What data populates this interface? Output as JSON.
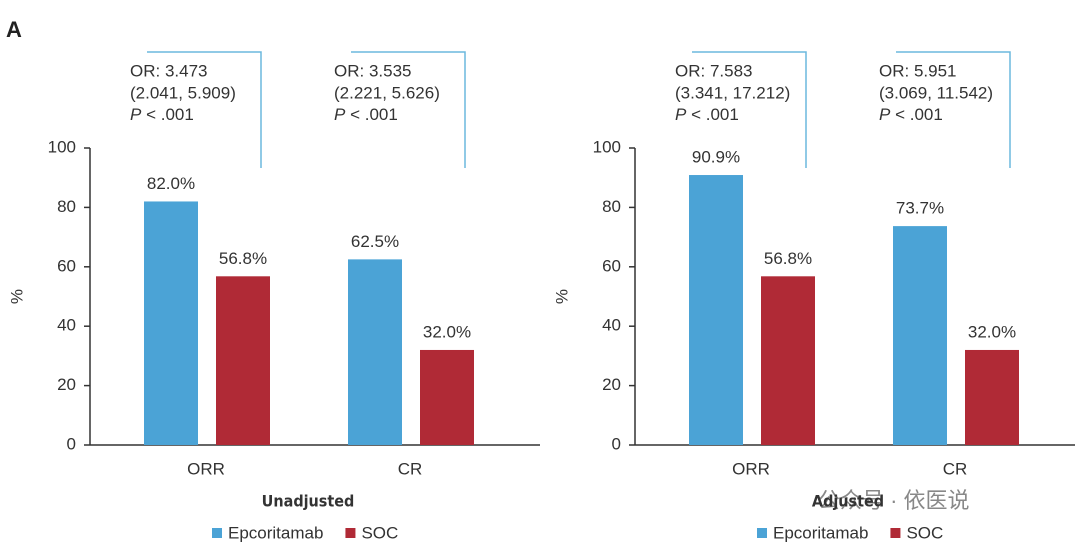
{
  "panel_label": "A",
  "watermark": "公众号 · 依医说",
  "chart_data": [
    {
      "type": "bar",
      "xlabel": "Unadjusted",
      "ylabel": "%",
      "categories": [
        "ORR",
        "CR"
      ],
      "series": [
        {
          "name": "Epcoritamab",
          "color": "#4ba3d6",
          "values": [
            82.0,
            62.5
          ],
          "value_labels": [
            "82.0%",
            "62.5%"
          ]
        },
        {
          "name": "SOC",
          "color": "#b02a36",
          "values": [
            56.8,
            32.0
          ],
          "value_labels": [
            "56.8%",
            "32.0%"
          ]
        }
      ],
      "ylim": [
        0,
        100
      ],
      "yticks": [
        0,
        20,
        40,
        60,
        80,
        100
      ],
      "annotations": [
        {
          "or": "OR: 3.473",
          "ci": "(2.041, 5.909)",
          "p_symbol": "P",
          "p_text": "< .001"
        },
        {
          "or": "OR: 3.535",
          "ci": "(2.221, 5.626)",
          "p_symbol": "P",
          "p_text": "< .001"
        }
      ]
    },
    {
      "type": "bar",
      "xlabel": "Adjusted",
      "ylabel": "%",
      "categories": [
        "ORR",
        "CR"
      ],
      "series": [
        {
          "name": "Epcoritamab",
          "color": "#4ba3d6",
          "values": [
            90.9,
            73.7
          ],
          "value_labels": [
            "90.9%",
            "73.7%"
          ]
        },
        {
          "name": "SOC",
          "color": "#b02a36",
          "values": [
            56.8,
            32.0
          ],
          "value_labels": [
            "56.8%",
            "32.0%"
          ]
        }
      ],
      "ylim": [
        0,
        100
      ],
      "yticks": [
        0,
        20,
        40,
        60,
        80,
        100
      ],
      "annotations": [
        {
          "or": "OR: 7.583",
          "ci": "(3.341, 17.212)",
          "p_symbol": "P",
          "p_text": "< .001"
        },
        {
          "or": "OR: 5.951",
          "ci": "(3.069, 11.542)",
          "p_symbol": "P",
          "p_text": "< .001"
        }
      ]
    }
  ]
}
